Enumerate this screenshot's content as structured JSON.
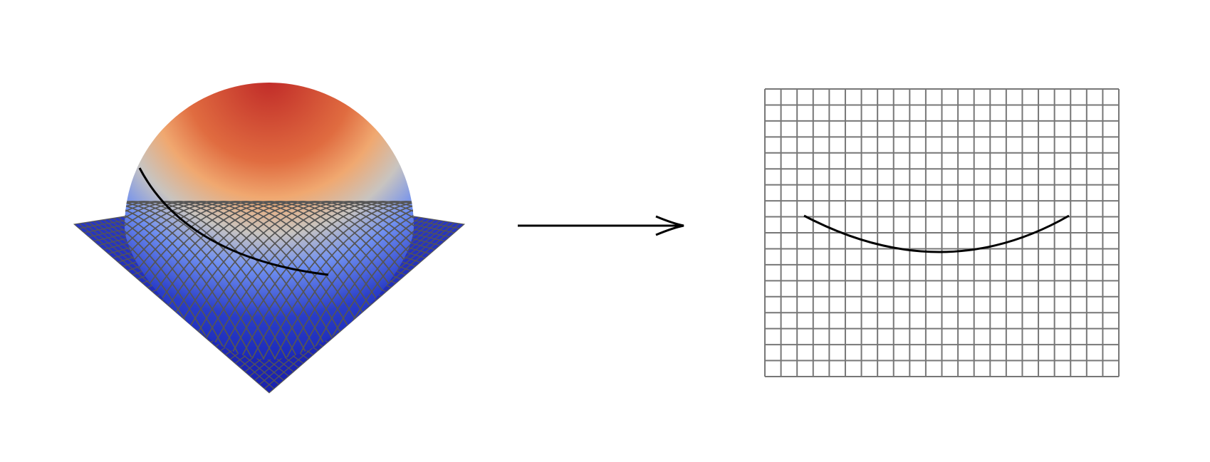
{
  "figure": {
    "background": "#ffffff",
    "surface": {
      "name": "hemisphere-on-plane",
      "colormap": [
        "#1520b4",
        "#2a3ec8",
        "#6f8ff0",
        "#c8c4c0",
        "#f0a870",
        "#e06c40",
        "#c02a28"
      ],
      "mesh_color": "#555555"
    },
    "arrow": {
      "color": "#000000"
    },
    "flat_grid": {
      "columns": 22,
      "rows": 18,
      "line_color": "#777777"
    },
    "curve_color": "#000000"
  }
}
